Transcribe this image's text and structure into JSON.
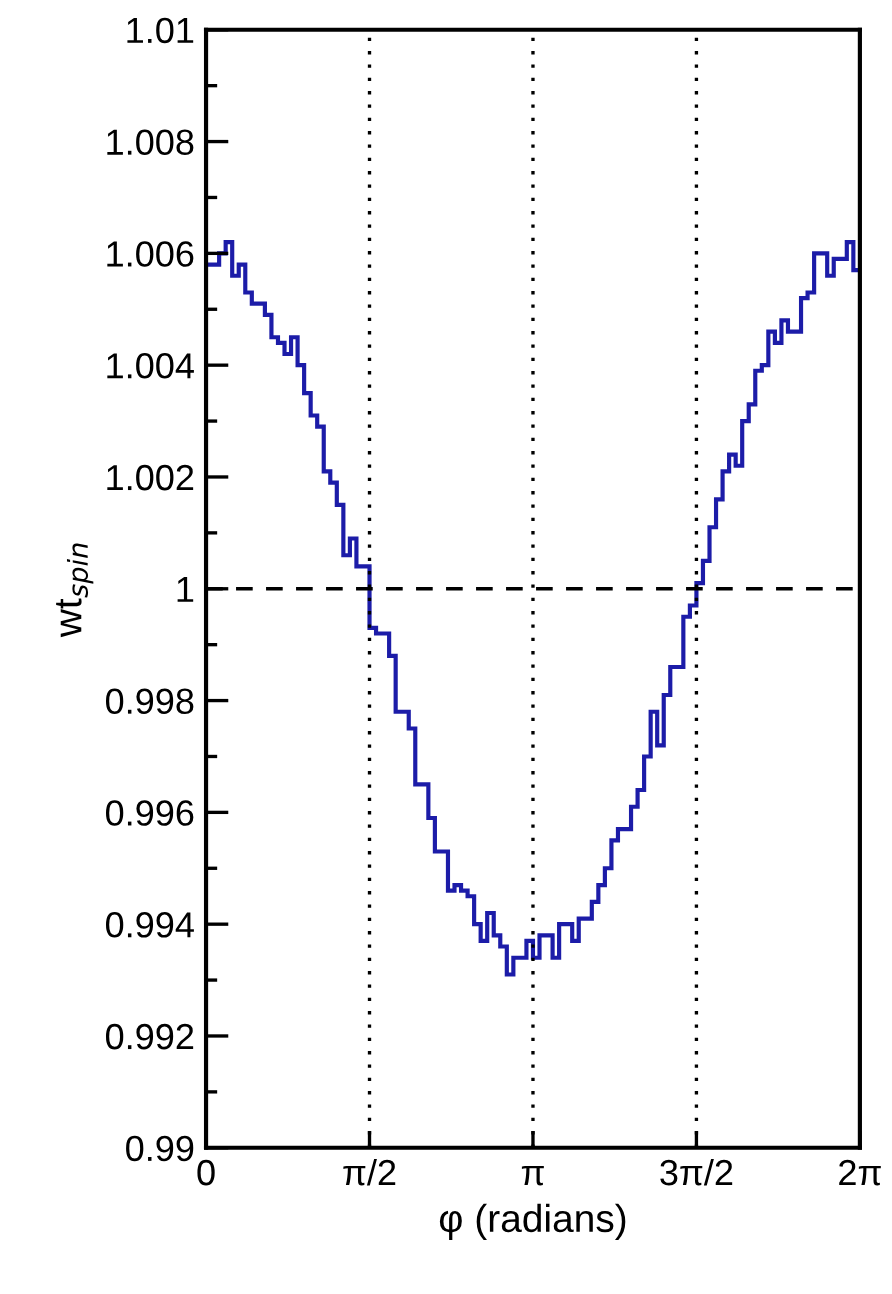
{
  "chart_data": {
    "type": "histogram",
    "xlabel": "φ (radians)",
    "ylabel": "wt$_{spin}$",
    "bins": [
      0,
      0.0628,
      0.1257,
      0.1885,
      0.2513,
      0.3142,
      0.377,
      0.4398,
      0.5027,
      0.5655,
      0.6283,
      0.6912,
      0.754,
      0.8168,
      0.8796,
      0.9425,
      1.0053,
      1.0681,
      1.131,
      1.1938,
      1.2566,
      1.3195,
      1.3823,
      1.4451,
      1.508,
      1.5708,
      1.6336,
      1.6965,
      1.7593,
      1.8221,
      1.885,
      1.9478,
      2.0106,
      2.0735,
      2.1363,
      2.1991,
      2.2619,
      2.3248,
      2.3876,
      2.4504,
      2.5133,
      2.5761,
      2.6389,
      2.7018,
      2.7646,
      2.8274,
      2.8903,
      2.9531,
      3.0159,
      3.0788,
      3.1416,
      3.2044,
      3.2673,
      3.3301,
      3.3929,
      3.4558,
      3.5186,
      3.5814,
      3.6442,
      3.7071,
      3.7699,
      3.8327,
      3.8956,
      3.9584,
      4.0212,
      4.0841,
      4.1469,
      4.2097,
      4.2726,
      4.3354,
      4.3982,
      4.4611,
      4.5239,
      4.5867,
      4.6496,
      4.7124,
      4.7752,
      4.8381,
      4.9009,
      4.9637,
      5.0265,
      5.0894,
      5.1522,
      5.215,
      5.2779,
      5.3407,
      5.4035,
      5.4664,
      5.5292,
      5.592,
      5.6549,
      5.7177,
      5.7805,
      5.8434,
      5.9062,
      5.969,
      6.0319,
      6.0947,
      6.1575,
      6.2204,
      6.2832
    ],
    "values": [
      1.0058,
      1.0058,
      1.006,
      1.0062,
      1.0056,
      1.0058,
      1.0053,
      1.0051,
      1.0051,
      1.0049,
      1.0045,
      1.0044,
      1.0042,
      1.0045,
      1.004,
      1.0035,
      1.0031,
      1.0029,
      1.0021,
      1.0019,
      1.0015,
      1.0006,
      1.0009,
      1.0004,
      1.0004,
      0.9993,
      0.9992,
      0.9992,
      0.9988,
      0.9978,
      0.9978,
      0.9975,
      0.9965,
      0.9965,
      0.9959,
      0.9953,
      0.9953,
      0.9946,
      0.9947,
      0.9946,
      0.9945,
      0.994,
      0.9937,
      0.9942,
      0.9938,
      0.9936,
      0.9931,
      0.9934,
      0.9934,
      0.9937,
      0.9934,
      0.9938,
      0.9938,
      0.9934,
      0.994,
      0.994,
      0.9937,
      0.9941,
      0.9941,
      0.9944,
      0.9947,
      0.995,
      0.9955,
      0.9957,
      0.9957,
      0.9961,
      0.9964,
      0.997,
      0.9978,
      0.9972,
      0.9981,
      0.9986,
      0.9986,
      0.9995,
      0.9997,
      1.0001,
      1.0005,
      1.0011,
      1.0016,
      1.0021,
      1.0024,
      1.0022,
      1.003,
      1.0033,
      1.0039,
      1.004,
      1.0046,
      1.0044,
      1.0048,
      1.0046,
      1.0046,
      1.0052,
      1.0053,
      1.006,
      1.006,
      1.0056,
      1.0059,
      1.0059,
      1.0062,
      1.0057
    ],
    "color": "#1c1ca8",
    "xlim": [
      0,
      6.2832
    ],
    "xticks": [
      0,
      {
        "value": 1.5708,
        "label": "π/2"
      },
      {
        "value": 3.1416,
        "label": "π"
      },
      {
        "value": 4.7124,
        "label": "3π/2"
      },
      {
        "value": 6.2832,
        "label": "2π"
      }
    ],
    "ylim": [
      0.99,
      1.01
    ],
    "yticks": [
      0.99,
      0.992,
      0.994,
      0.996,
      0.998,
      1,
      1.002,
      1.004,
      1.006,
      1.008,
      1.01
    ],
    "ref_lines": [
      {
        "axis": "x",
        "value": 1.5708,
        "line_style": "dotted",
        "color": "#000000"
      },
      {
        "axis": "x",
        "value": 3.1416,
        "line_style": "dotted",
        "color": "#000000"
      },
      {
        "axis": "x",
        "value": 4.7124,
        "line_style": "dotted",
        "color": "#000000"
      },
      {
        "axis": "y",
        "value": 1,
        "line_style": "dashed",
        "color": "#000000"
      }
    ],
    "grid": false,
    "legend": false
  }
}
